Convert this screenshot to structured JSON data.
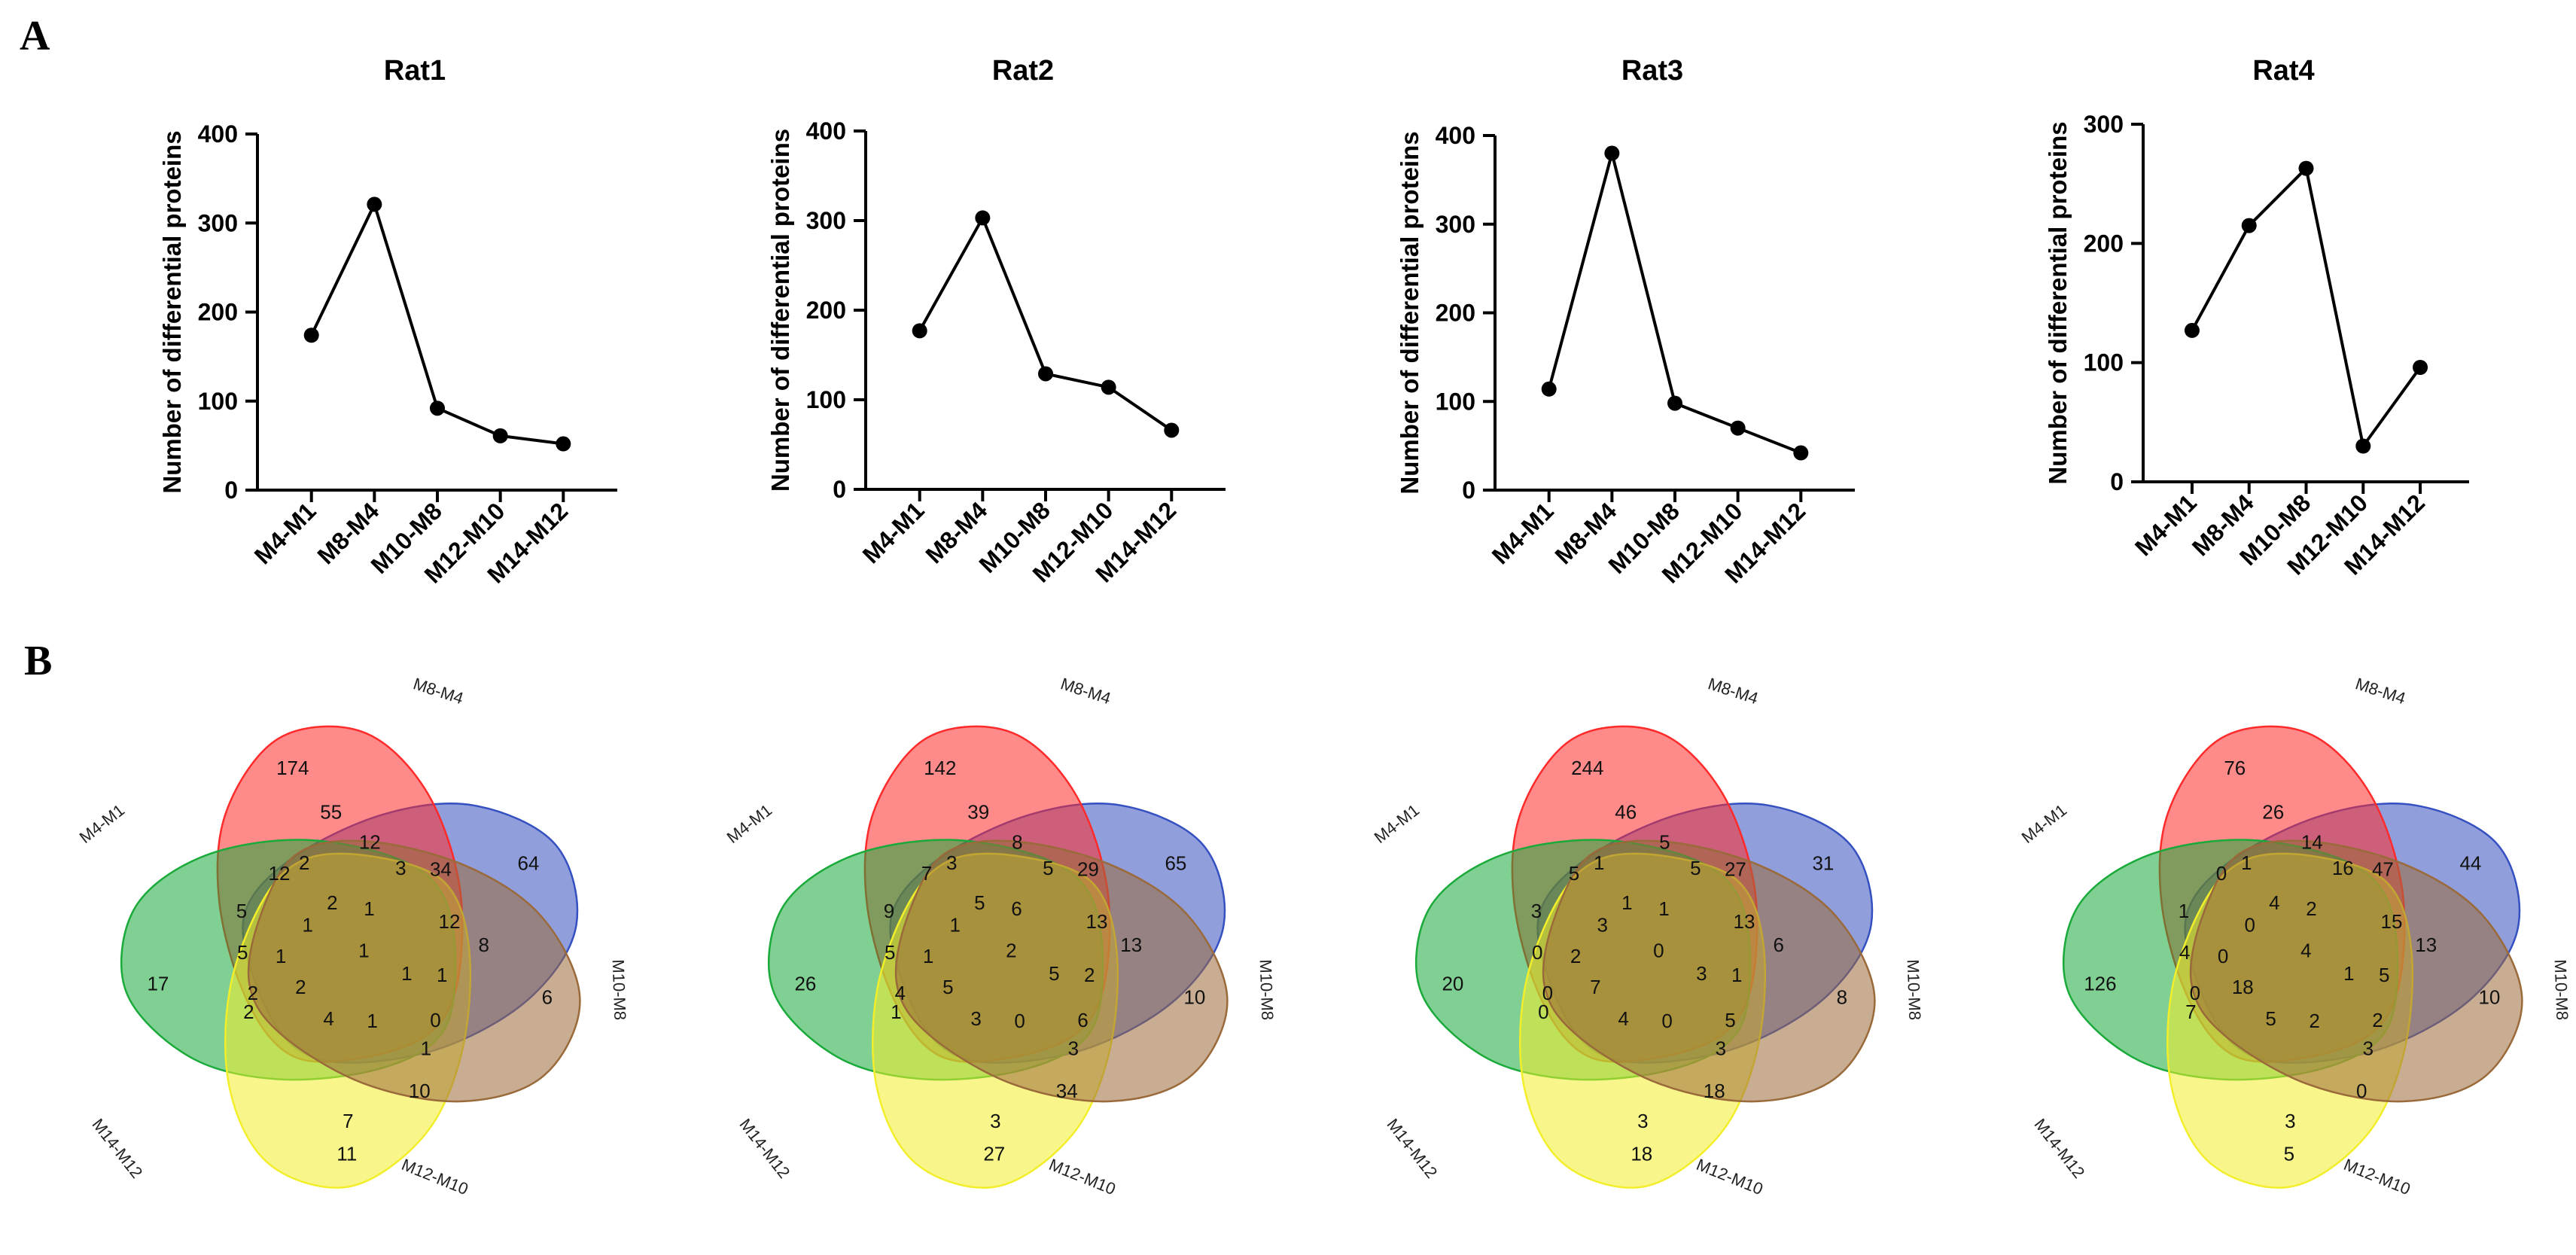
{
  "panel_labels": {
    "a": "A",
    "b": "B"
  },
  "chart_data": [
    {
      "type": "line",
      "title": "Rat1",
      "xlabel": "",
      "ylabel": "Number of differential proteins",
      "categories": [
        "M4-M1",
        "M8-M4",
        "M10-M8",
        "M12-M10",
        "M14-M12"
      ],
      "values": [
        174,
        321,
        92,
        61,
        52
      ],
      "ylim": [
        0,
        400
      ],
      "yticks": [
        0,
        100,
        200,
        300,
        400
      ],
      "grid": false
    },
    {
      "type": "line",
      "title": "Rat2",
      "xlabel": "",
      "ylabel": "Number of differential proteins",
      "categories": [
        "M4-M1",
        "M8-M4",
        "M10-M8",
        "M12-M10",
        "M14-M12"
      ],
      "values": [
        177,
        303,
        129,
        114,
        66
      ],
      "ylim": [
        0,
        400
      ],
      "yticks": [
        0,
        100,
        200,
        300,
        400
      ],
      "grid": false
    },
    {
      "type": "line",
      "title": "Rat3",
      "xlabel": "",
      "ylabel": "Number of differential proteins",
      "categories": [
        "M4-M1",
        "M8-M4",
        "M10-M8",
        "M12-M10",
        "M14-M12"
      ],
      "values": [
        114,
        380,
        98,
        70,
        42
      ],
      "ylim": [
        0,
        400
      ],
      "yticks": [
        0,
        100,
        200,
        300,
        400
      ],
      "grid": false
    },
    {
      "type": "line",
      "title": "Rat4",
      "xlabel": "",
      "ylabel": "Number of differential proteins",
      "categories": [
        "M4-M1",
        "M8-M4",
        "M10-M8",
        "M12-M10",
        "M14-M12"
      ],
      "values": [
        127,
        215,
        263,
        30,
        96
      ],
      "ylim": [
        0,
        300
      ],
      "yticks": [
        0,
        100,
        200,
        300
      ],
      "grid": false
    }
  ],
  "venn_sets": [
    {
      "name": "M4-M1",
      "color": "#3550c0"
    },
    {
      "name": "M8-M4",
      "color": "#ff2a2a"
    },
    {
      "name": "M10-M8",
      "color": "#1aaa3a"
    },
    {
      "name": "M12-M10",
      "color": "#f2ee2a"
    },
    {
      "name": "M14-M12",
      "color": "#9a6a3a"
    }
  ],
  "venn_diagrams": [
    {
      "counts": [
        64,
        174,
        17,
        11,
        6,
        55,
        12,
        34,
        12,
        8,
        2,
        5,
        5,
        10,
        7,
        12,
        2,
        3,
        1,
        1,
        1,
        1,
        2,
        2,
        2,
        0,
        1,
        4,
        1,
        1,
        1
      ]
    },
    {
      "counts": [
        65,
        142,
        26,
        27,
        10,
        39,
        8,
        29,
        13,
        13,
        3,
        5,
        9,
        34,
        3,
        7,
        5,
        5,
        1,
        2,
        6,
        1,
        4,
        1,
        5,
        6,
        5,
        3,
        0,
        2,
        3
      ]
    },
    {
      "counts": [
        31,
        244,
        20,
        18,
        8,
        46,
        5,
        27,
        13,
        6,
        1,
        0,
        3,
        18,
        3,
        5,
        1,
        5,
        3,
        1,
        1,
        2,
        0,
        0,
        7,
        5,
        3,
        4,
        0,
        0,
        3
      ]
    },
    {
      "counts": [
        44,
        76,
        126,
        5,
        10,
        26,
        14,
        47,
        15,
        13,
        1,
        4,
        1,
        0,
        3,
        0,
        4,
        16,
        0,
        5,
        2,
        0,
        0,
        7,
        18,
        2,
        1,
        5,
        2,
        4,
        3
      ]
    }
  ]
}
